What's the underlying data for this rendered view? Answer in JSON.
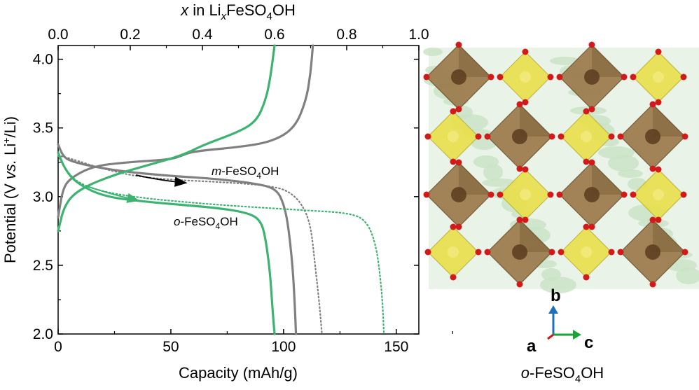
{
  "chart_data": {
    "type": "line",
    "xlabel": "Capacity (mAh/g)",
    "ylabel_parts": {
      "main": "Potential (V ",
      "vs": "vs.",
      "mid": " Li",
      "sup": "+",
      "end": "/Li)"
    },
    "top_xlabel_parts": {
      "x": "x",
      "in": " in Li",
      "sub_x": "x",
      "fe": "FeSO",
      "sub_4": "4",
      "oh": "OH"
    },
    "xlim": [
      0,
      160
    ],
    "ylim": [
      2.0,
      4.1
    ],
    "top_xlim": [
      0,
      1.0
    ],
    "x_ticks": [
      "0",
      "50",
      "100",
      "150"
    ],
    "x_tick_values": [
      0,
      50,
      100,
      150
    ],
    "y_ticks": [
      "2.0",
      "2.5",
      "3.0",
      "3.5",
      "4.0"
    ],
    "y_tick_values": [
      2.0,
      2.5,
      3.0,
      3.5,
      4.0
    ],
    "top_ticks": [
      "0.0",
      "0.2",
      "0.4",
      "0.6",
      "0.8",
      "1.0"
    ],
    "top_tick_values": [
      0.0,
      0.2,
      0.4,
      0.6,
      0.8,
      1.0
    ],
    "colors": {
      "m": "#808080",
      "o": "#3cb371",
      "arrow_m": "#000000"
    },
    "series": [
      {
        "color": "#808080",
        "style": "dotted",
        "points": [
          [
            0,
            3.3
          ],
          [
            5,
            3.28
          ],
          [
            20,
            3.2
          ],
          [
            40,
            3.13
          ],
          [
            80,
            3.1
          ],
          [
            97,
            3.07
          ],
          [
            103,
            3.03
          ],
          [
            108,
            2.95
          ],
          [
            112,
            2.8
          ],
          [
            114,
            2.5
          ],
          [
            116,
            2.2
          ],
          [
            117,
            2.0
          ]
        ]
      },
      {
        "color": "#808080",
        "style": "solid",
        "points": [
          [
            0,
            3.38
          ],
          [
            2,
            3.3
          ],
          [
            5,
            3.26
          ],
          [
            15,
            3.22
          ],
          [
            30,
            3.18
          ],
          [
            50,
            3.15
          ],
          [
            70,
            3.13
          ],
          [
            90,
            3.09
          ],
          [
            97,
            3.05
          ],
          [
            100,
            2.95
          ],
          [
            102,
            2.8
          ],
          [
            104,
            2.5
          ],
          [
            105,
            2.2
          ],
          [
            105.5,
            2.0
          ]
        ]
      },
      {
        "color": "#808080",
        "style": "solid",
        "points": [
          [
            0,
            2.85
          ],
          [
            2,
            3.05
          ],
          [
            5,
            3.13
          ],
          [
            15,
            3.22
          ],
          [
            30,
            3.25
          ],
          [
            50,
            3.27
          ],
          [
            55,
            3.3
          ],
          [
            60,
            3.33
          ],
          [
            80,
            3.36
          ],
          [
            95,
            3.4
          ],
          [
            105,
            3.5
          ],
          [
            110,
            3.7
          ],
          [
            112,
            3.9
          ],
          [
            113,
            4.1
          ]
        ]
      },
      {
        "color": "#3cb371",
        "style": "dotted",
        "points": [
          [
            0,
            3.3
          ],
          [
            3,
            3.2
          ],
          [
            10,
            3.08
          ],
          [
            30,
            3.0
          ],
          [
            70,
            2.94
          ],
          [
            110,
            2.9
          ],
          [
            130,
            2.88
          ],
          [
            137,
            2.82
          ],
          [
            141,
            2.65
          ],
          [
            143,
            2.4
          ],
          [
            144,
            2.2
          ],
          [
            144.5,
            2.0
          ]
        ]
      },
      {
        "color": "#3cb371",
        "style": "solid",
        "points": [
          [
            0,
            3.32
          ],
          [
            3,
            3.2
          ],
          [
            8,
            3.1
          ],
          [
            20,
            3.0
          ],
          [
            40,
            2.96
          ],
          [
            70,
            2.92
          ],
          [
            85,
            2.88
          ],
          [
            90,
            2.82
          ],
          [
            92,
            2.7
          ],
          [
            94,
            2.45
          ],
          [
            95,
            2.2
          ],
          [
            96,
            2.0
          ]
        ]
      },
      {
        "color": "#3cb371",
        "style": "solid",
        "points": [
          [
            0,
            2.75
          ],
          [
            3,
            2.95
          ],
          [
            10,
            3.06
          ],
          [
            25,
            3.16
          ],
          [
            40,
            3.23
          ],
          [
            55,
            3.3
          ],
          [
            65,
            3.38
          ],
          [
            80,
            3.47
          ],
          [
            88,
            3.55
          ],
          [
            92,
            3.7
          ],
          [
            94,
            3.85
          ],
          [
            96,
            4.1
          ]
        ]
      }
    ],
    "annotations": [
      {
        "pre": "m",
        "mid": "-FeSO",
        "sub": "4",
        "post": "OH"
      },
      {
        "pre": "o",
        "mid": "-FeSO",
        "sub": "4",
        "post": "OH"
      }
    ]
  },
  "structure": {
    "axis_b": "b",
    "axis_a": "a",
    "axis_c": "c",
    "caption": {
      "pre": "o",
      "mid": "-FeSO",
      "sub": "4",
      "post": "OH"
    },
    "colors": {
      "octahedron": "#9b7a4b",
      "octahedron_dark": "#6b4f2c",
      "tetrahedron": "#e8e04a",
      "oxygen": "#d21a1a",
      "iron": "#5a3d1e",
      "background": "#c9e2c5",
      "b_axis": "#1f6fbf",
      "c_axis": "#1aa336",
      "a_axis": "#d21a1a"
    }
  }
}
